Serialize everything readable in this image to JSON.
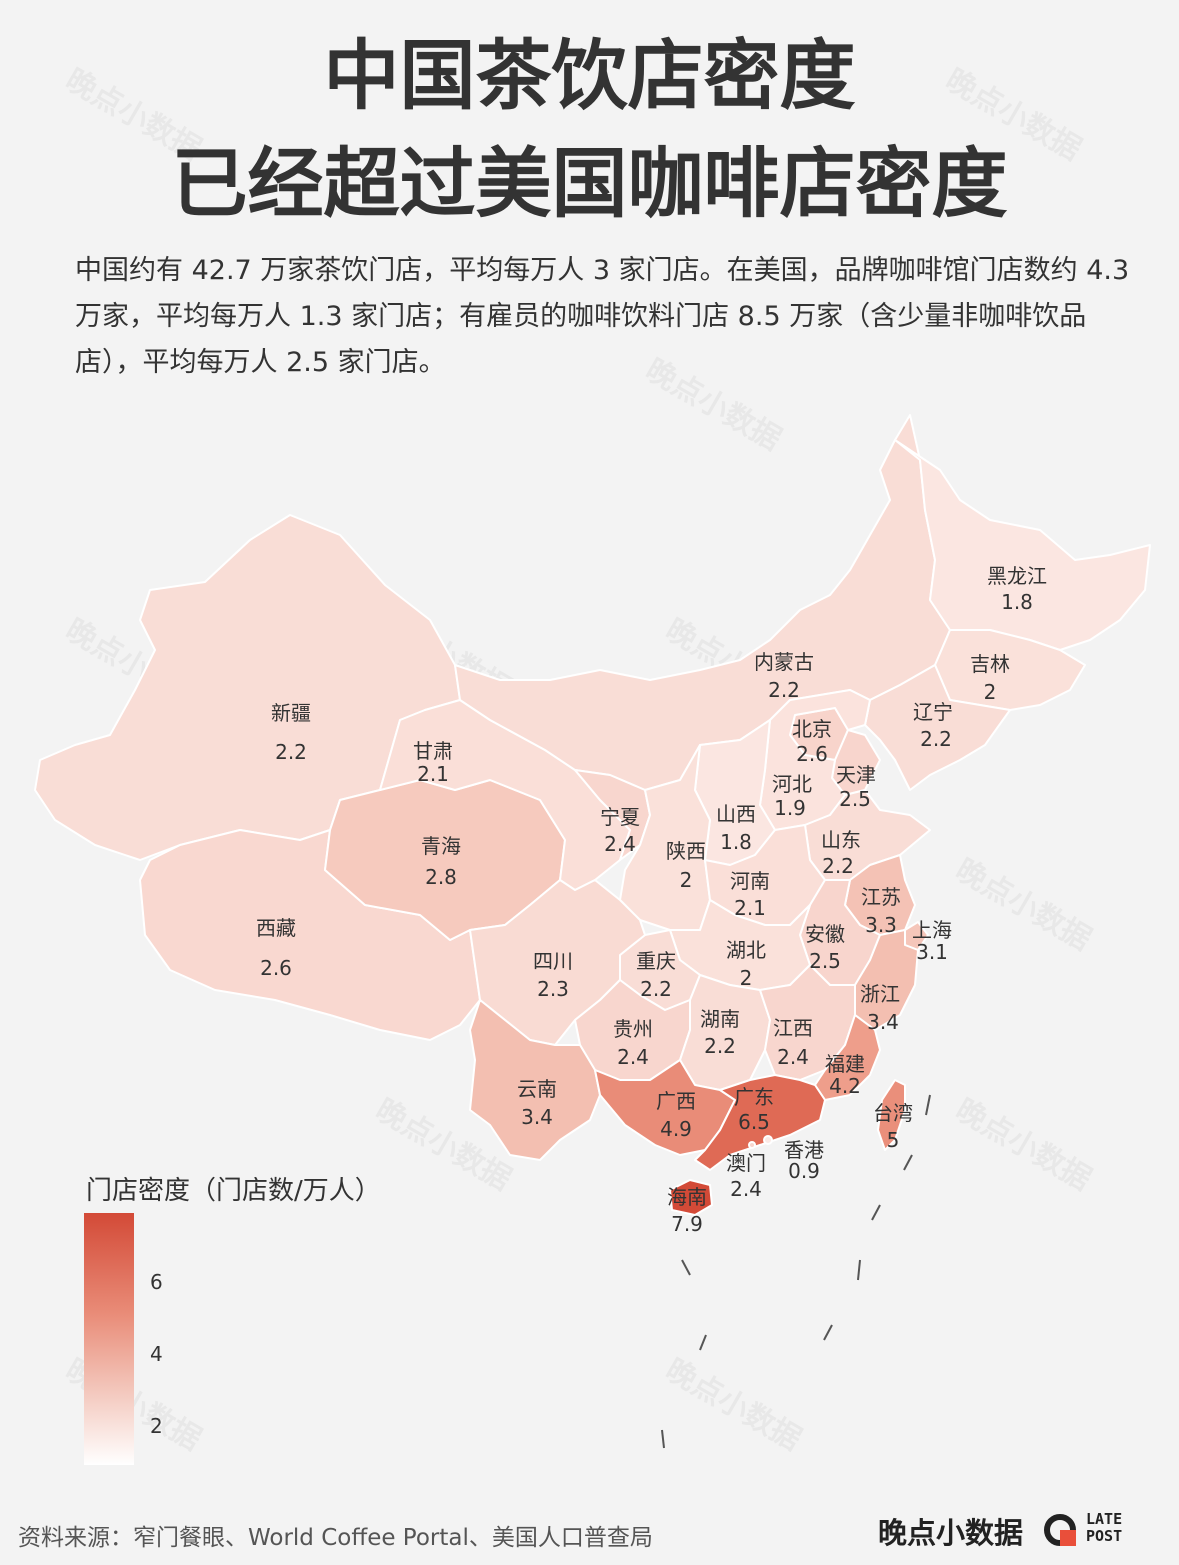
{
  "title_line1": "中国茶饮店密度",
  "title_line2": "已经超过美国咖啡店密度",
  "subtitle": "中国约有 42.7 万家茶饮门店，平均每万人 3 家门店。在美国，品牌咖啡馆门店数约 4.3 万家，平均每万人 1.3 家门店；有雇员的咖啡饮料门店 8.5 万家（含少量非咖啡饮品店），平均每万人 2.5 家门店。",
  "provinces": [
    {
      "name": "黑龙江",
      "value": "1.8"
    },
    {
      "name": "吉林",
      "value": "2"
    },
    {
      "name": "内蒙古",
      "value": "2.2"
    },
    {
      "name": "辽宁",
      "value": "2.2"
    },
    {
      "name": "新疆",
      "value": "2.2"
    },
    {
      "name": "北京",
      "value": "2.6"
    },
    {
      "name": "甘肃",
      "value": "2.1"
    },
    {
      "name": "天津",
      "value": "2.5"
    },
    {
      "name": "河北",
      "value": "1.9"
    },
    {
      "name": "宁夏",
      "value": "2.4"
    },
    {
      "name": "山西",
      "value": "1.8"
    },
    {
      "name": "山东",
      "value": "2.2"
    },
    {
      "name": "青海",
      "value": "2.8"
    },
    {
      "name": "陕西",
      "value": "2"
    },
    {
      "name": "河南",
      "value": "2.1"
    },
    {
      "name": "江苏",
      "value": "3.3"
    },
    {
      "name": "西藏",
      "value": "2.6"
    },
    {
      "name": "上海",
      "value": "3.1"
    },
    {
      "name": "安徽",
      "value": "2.5"
    },
    {
      "name": "四川",
      "value": "2.3"
    },
    {
      "name": "重庆",
      "value": "2.2"
    },
    {
      "name": "湖北",
      "value": "2"
    },
    {
      "name": "浙江",
      "value": "3.4"
    },
    {
      "name": "贵州",
      "value": "2.4"
    },
    {
      "name": "湖南",
      "value": "2.2"
    },
    {
      "name": "江西",
      "value": "2.4"
    },
    {
      "name": "福建",
      "value": "4.2"
    },
    {
      "name": "云南",
      "value": "3.4"
    },
    {
      "name": "广西",
      "value": "4.9"
    },
    {
      "name": "广东",
      "value": "6.5"
    },
    {
      "name": "台湾",
      "value": "5"
    },
    {
      "name": "香港",
      "value": "0.9"
    },
    {
      "name": "澳门",
      "value": "2.4"
    },
    {
      "name": "海南",
      "value": "7.9"
    }
  ],
  "legend": {
    "title": "门店密度（门店数/万人）",
    "ticks": [
      "6",
      "4",
      "2"
    ],
    "colors": {
      "low": "#ffffff",
      "high": "#d34a37"
    }
  },
  "source": "资料来源：窄门餐眼、World Coffee Portal、美国人口普查局",
  "brand": {
    "name": "晚点小数据",
    "late": "LATE",
    "post": "POST"
  },
  "watermark": "晚点小数据"
}
